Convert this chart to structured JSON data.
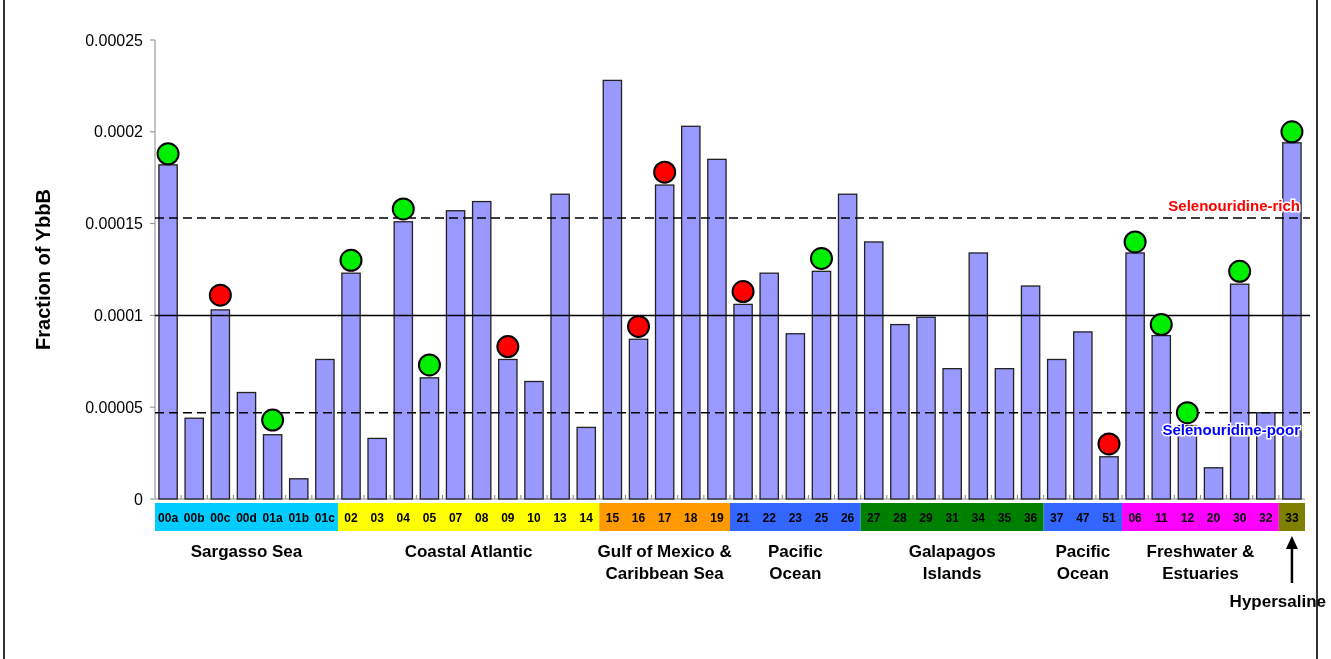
{
  "chart_data": {
    "type": "bar",
    "ylabel": "Fraction of YbbB",
    "categories": [
      "00a",
      "00b",
      "00c",
      "00d",
      "01a",
      "01b",
      "01c",
      "02",
      "03",
      "04",
      "05",
      "07",
      "08",
      "09",
      "10",
      "13",
      "14",
      "15",
      "16",
      "17",
      "18",
      "19",
      "21",
      "22",
      "23",
      "25",
      "26",
      "27",
      "28",
      "29",
      "31",
      "34",
      "35",
      "36",
      "37",
      "47",
      "51",
      "06",
      "11",
      "12",
      "20",
      "30",
      "32",
      "33"
    ],
    "series": [
      {
        "type": "bar",
        "color": "#9999ff",
        "values": [
          0.000182,
          4.4e-05,
          0.000103,
          5.8e-05,
          3.5e-05,
          1.1e-05,
          7.6e-05,
          0.000123,
          3.3e-05,
          0.000151,
          6.6e-05,
          0.000157,
          0.000162,
          7.6e-05,
          6.4e-05,
          0.000166,
          3.9e-05,
          0.000228,
          8.7e-05,
          0.000171,
          0.000203,
          0.000185,
          0.000106,
          0.000123,
          9e-05,
          0.000124,
          0.000166,
          0.00014,
          9.5e-05,
          9.9e-05,
          7.1e-05,
          0.000134,
          7.1e-05,
          0.000116,
          7.6e-05,
          9.1e-05,
          2.3e-05,
          0.000134,
          8.9e-05,
          4e-05,
          1.7e-05,
          0.000117,
          4.7e-05,
          0.000194
        ]
      },
      {
        "type": "scatter",
        "color": "#00ee00",
        "x": [
          "00a",
          "01a",
          "02",
          "04",
          "05",
          "25",
          "06",
          "11",
          "12",
          "30",
          "33"
        ],
        "values": [
          0.000188,
          4.3e-05,
          0.00013,
          0.000158,
          7.3e-05,
          0.000131,
          0.00014,
          9.5e-05,
          4.7e-05,
          0.000124,
          0.0002
        ]
      },
      {
        "type": "scatter",
        "color": "#ff0000",
        "x": [
          "00c",
          "09",
          "16",
          "17",
          "21",
          "51"
        ],
        "values": [
          0.000111,
          8.3e-05,
          9.4e-05,
          0.000178,
          0.000113,
          3e-05
        ]
      }
    ],
    "marker": "circle",
    "grid": false,
    "ylim": [
      0,
      0.00025
    ],
    "yticks": [
      0,
      {
        "value": 5e-05,
        "label": "0.00005"
      },
      0.0001,
      0.00015,
      0.0002,
      0.00025
    ],
    "ref_lines": [
      {
        "axis": "y",
        "value": 0.0001,
        "line_style": "solid",
        "color": "#000000"
      },
      {
        "axis": "y",
        "value": 0.000153,
        "line_style": "dashed",
        "color": "#000000",
        "label": "Selenouridine-rich"
      },
      {
        "axis": "y",
        "value": 4.7e-05,
        "line_style": "dashed",
        "color": "#000000",
        "label": "Selenouridine-poor"
      }
    ],
    "annotations": [
      "Sargasso Sea",
      "Coastal Atlantic",
      "Gulf of Mexico &\nCaribbean Sea",
      "Pacific\nOcean",
      "Galapagos\nIslands",
      "Pacific\nOcean",
      "Freshwater &\nEstuaries",
      "Hypersaline"
    ]
  }
}
